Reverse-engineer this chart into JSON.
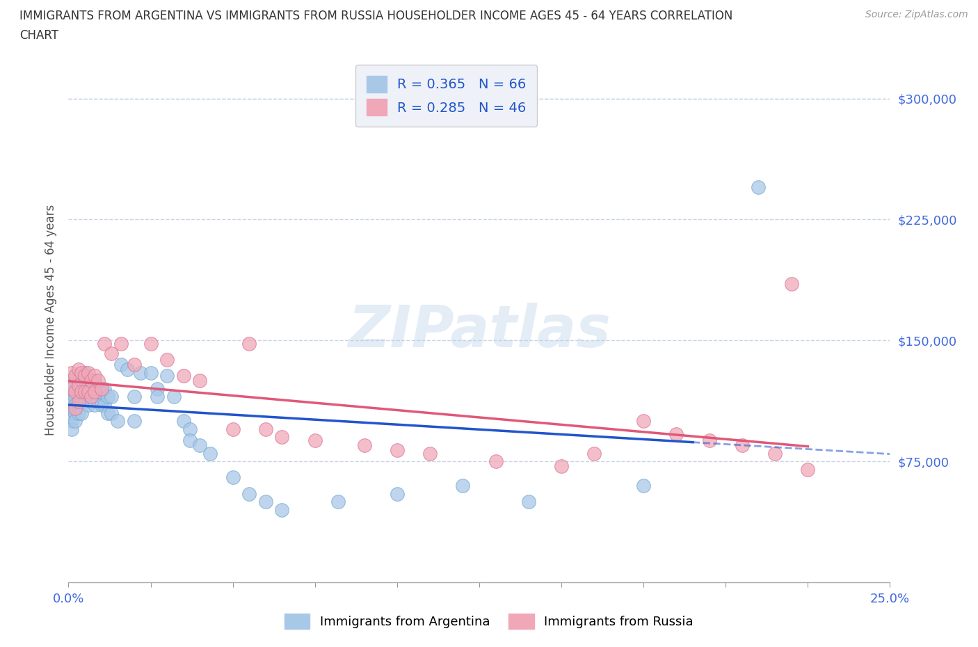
{
  "title_line1": "IMMIGRANTS FROM ARGENTINA VS IMMIGRANTS FROM RUSSIA HOUSEHOLDER INCOME AGES 45 - 64 YEARS CORRELATION",
  "title_line2": "CHART",
  "source": "Source: ZipAtlas.com",
  "ylabel": "Householder Income Ages 45 - 64 years",
  "xlim": [
    0,
    0.25
  ],
  "ylim": [
    0,
    325000
  ],
  "xticks": [
    0.0,
    0.025,
    0.05,
    0.075,
    0.1,
    0.125,
    0.15,
    0.175,
    0.2,
    0.225,
    0.25
  ],
  "yticks": [
    75000,
    150000,
    225000,
    300000
  ],
  "ytick_labels": [
    "$75,000",
    "$150,000",
    "$225,000",
    "$300,000"
  ],
  "watermark": "ZIPatlas",
  "argentina_color": "#a8c8e8",
  "argentina_edge": "#7aaad0",
  "russia_color": "#f0a8b8",
  "russia_edge": "#d87898",
  "argentina_line_color": "#2255cc",
  "russia_line_color": "#e05878",
  "argentina_R": 0.365,
  "argentina_N": 66,
  "russia_R": 0.285,
  "russia_N": 46,
  "legend_argentina": "Immigrants from Argentina",
  "legend_russia": "Immigrants from Russia",
  "argentina_x": [
    0.001,
    0.001,
    0.001,
    0.001,
    0.001,
    0.001,
    0.002,
    0.002,
    0.002,
    0.002,
    0.002,
    0.003,
    0.003,
    0.003,
    0.003,
    0.004,
    0.004,
    0.004,
    0.004,
    0.005,
    0.005,
    0.005,
    0.006,
    0.006,
    0.006,
    0.007,
    0.007,
    0.008,
    0.008,
    0.008,
    0.009,
    0.009,
    0.01,
    0.01,
    0.011,
    0.011,
    0.012,
    0.012,
    0.013,
    0.013,
    0.015,
    0.016,
    0.018,
    0.02,
    0.02,
    0.022,
    0.025,
    0.027,
    0.027,
    0.03,
    0.032,
    0.035,
    0.037,
    0.037,
    0.04,
    0.043,
    0.05,
    0.055,
    0.06,
    0.065,
    0.082,
    0.1,
    0.12,
    0.14,
    0.175,
    0.21
  ],
  "argentina_y": [
    125000,
    115000,
    110000,
    105000,
    100000,
    95000,
    120000,
    115000,
    110000,
    105000,
    100000,
    125000,
    118000,
    110000,
    105000,
    125000,
    118000,
    112000,
    105000,
    130000,
    120000,
    112000,
    125000,
    118000,
    110000,
    120000,
    112000,
    125000,
    118000,
    110000,
    120000,
    112000,
    118000,
    110000,
    120000,
    110000,
    115000,
    105000,
    115000,
    105000,
    100000,
    135000,
    132000,
    115000,
    100000,
    130000,
    130000,
    120000,
    115000,
    128000,
    115000,
    100000,
    95000,
    88000,
    85000,
    80000,
    65000,
    55000,
    50000,
    45000,
    50000,
    55000,
    60000,
    50000,
    60000,
    245000
  ],
  "russia_x": [
    0.001,
    0.001,
    0.002,
    0.002,
    0.002,
    0.003,
    0.003,
    0.003,
    0.004,
    0.004,
    0.005,
    0.005,
    0.006,
    0.006,
    0.007,
    0.007,
    0.008,
    0.008,
    0.009,
    0.01,
    0.011,
    0.013,
    0.016,
    0.02,
    0.025,
    0.03,
    0.035,
    0.04,
    0.05,
    0.055,
    0.06,
    0.065,
    0.075,
    0.09,
    0.1,
    0.11,
    0.13,
    0.15,
    0.16,
    0.175,
    0.185,
    0.195,
    0.205,
    0.215,
    0.22,
    0.225
  ],
  "russia_y": [
    130000,
    120000,
    128000,
    118000,
    108000,
    132000,
    122000,
    112000,
    130000,
    118000,
    128000,
    118000,
    130000,
    118000,
    125000,
    115000,
    128000,
    118000,
    125000,
    120000,
    148000,
    142000,
    148000,
    135000,
    148000,
    138000,
    128000,
    125000,
    95000,
    148000,
    95000,
    90000,
    88000,
    85000,
    82000,
    80000,
    75000,
    72000,
    80000,
    100000,
    92000,
    88000,
    85000,
    80000,
    185000,
    70000
  ],
  "grid_color": "#c8d4e8",
  "background_color": "#ffffff",
  "title_color": "#333333",
  "axis_label_color": "#555555",
  "tick_color": "#4169E1",
  "legend_box_color": "#eef2f8"
}
